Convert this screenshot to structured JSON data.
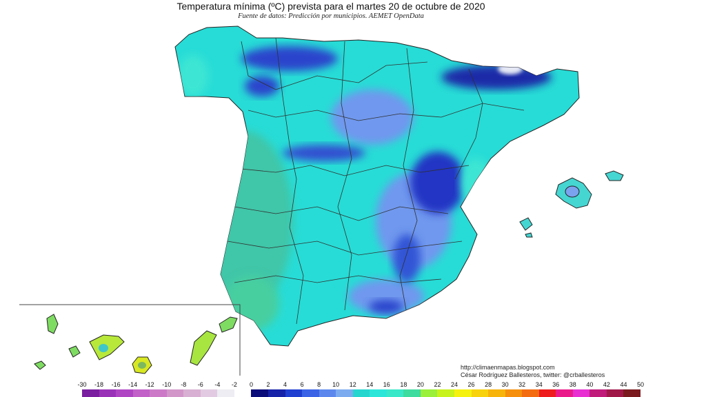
{
  "title": "Temperatura mínima (ºC) prevista para el martes 20 de octubre de 2020",
  "subtitle": "Fuente de datos: Predicción por municipios. AEMET OpenData",
  "credits": {
    "url": "http://climaenmapas.blogspot.com",
    "author": "César Rodríguez Ballesteros, twitter: @crballesteros"
  },
  "legend": {
    "ticks": [
      "-30",
      "-18",
      "-16",
      "-14",
      "-12",
      "-10",
      "-8",
      "-6",
      "-4",
      "-2",
      "0",
      "2",
      "4",
      "6",
      "8",
      "10",
      "12",
      "14",
      "16",
      "18",
      "20",
      "22",
      "24",
      "26",
      "28",
      "30",
      "32",
      "34",
      "36",
      "38",
      "40",
      "42",
      "44",
      "50"
    ],
    "colors": [
      "#7a1fa0",
      "#9a32b8",
      "#b045c4",
      "#c261c8",
      "#cc7ac8",
      "#d296c9",
      "#d8b0d3",
      "#e2cbe2",
      "#ededf3",
      "#ffffff",
      "#0a0c7a",
      "#1622a8",
      "#1f3fd0",
      "#3a63e6",
      "#5c88ee",
      "#7cabf0",
      "#25d6cf",
      "#2de6da",
      "#39e8c8",
      "#3fdca0",
      "#9af03a",
      "#c8f31d",
      "#f5f20f",
      "#f8d30d",
      "#f7b40a",
      "#f6900c",
      "#f46c10",
      "#ee1c1c",
      "#ea1a8a",
      "#e82fd2",
      "#c01a7a",
      "#a01848",
      "#7a1a1e"
    ]
  }
}
